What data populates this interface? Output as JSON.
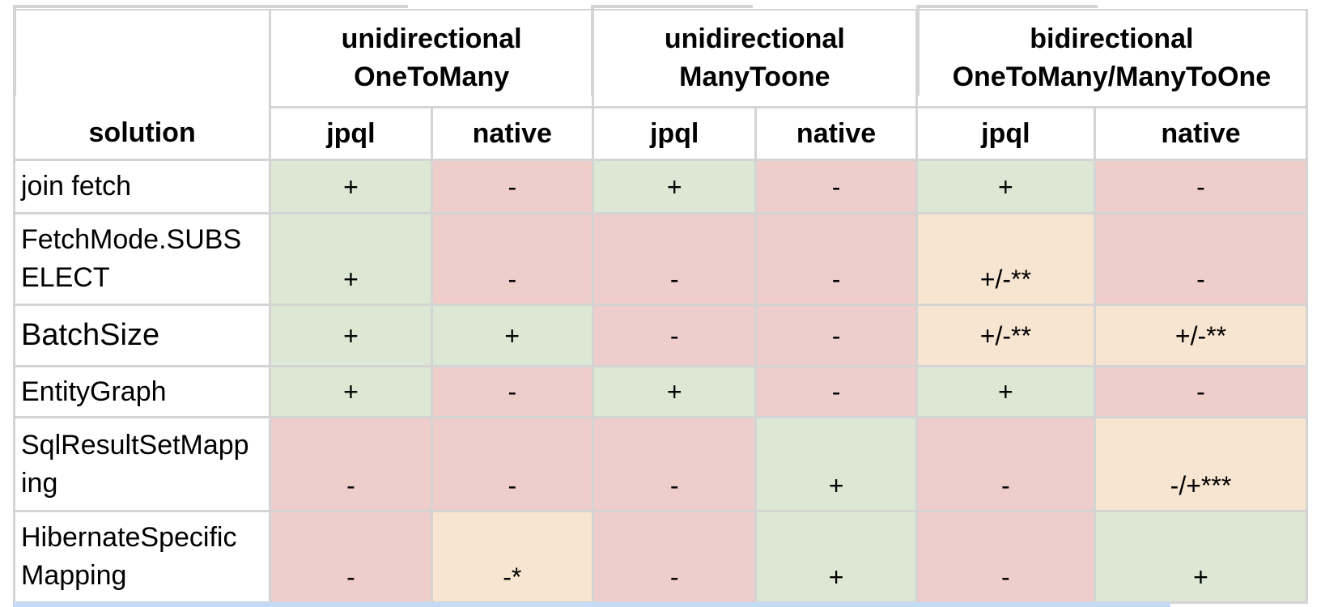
{
  "table": {
    "corner_label": "solution",
    "groups": [
      {
        "line1": "unidirectional",
        "line2": "OneToMany"
      },
      {
        "line1": "unidirectional",
        "line2": "ManyToone"
      },
      {
        "line1": "bidirectional",
        "line2": "OneToMany/ManyToOne"
      }
    ],
    "subheaders": [
      "jpql",
      "native",
      "jpql",
      "native",
      "jpql",
      "native"
    ],
    "rows": [
      {
        "label": "join fetch",
        "cells": [
          "+",
          "-",
          "+",
          "-",
          "+",
          "-"
        ]
      },
      {
        "label": "FetchMode.SUBSELECT",
        "label_line1": "FetchMode.SUBS",
        "label_line2": "ELECT",
        "cells": [
          "+",
          "-",
          "-",
          "-",
          "+/-**",
          "-"
        ]
      },
      {
        "label": "BatchSize",
        "cells": [
          "+",
          "+",
          "-",
          "-",
          "+/-**",
          "+/-**"
        ]
      },
      {
        "label": "EntityGraph",
        "cells": [
          "+",
          "-",
          "+",
          "-",
          "+",
          "-"
        ]
      },
      {
        "label": "SqlResultSetMapping",
        "label_line1": "SqlResultSetMapp",
        "label_line2": "ing",
        "cells": [
          "-",
          "-",
          "-",
          "+",
          "-",
          "-/+***"
        ]
      },
      {
        "label": "HibernateSpecificMapping",
        "label_line1": "HibernateSpecific",
        "label_line2": "Mapping",
        "cells": [
          "-",
          "-*",
          "-",
          "+",
          "-",
          "+"
        ]
      }
    ]
  },
  "colors": {
    "supported": "#dde8d4",
    "unsupported": "#eecdcb",
    "partial": "#f7e5d1",
    "border": "#d4d4d4",
    "selection": "#c5dbf5"
  }
}
